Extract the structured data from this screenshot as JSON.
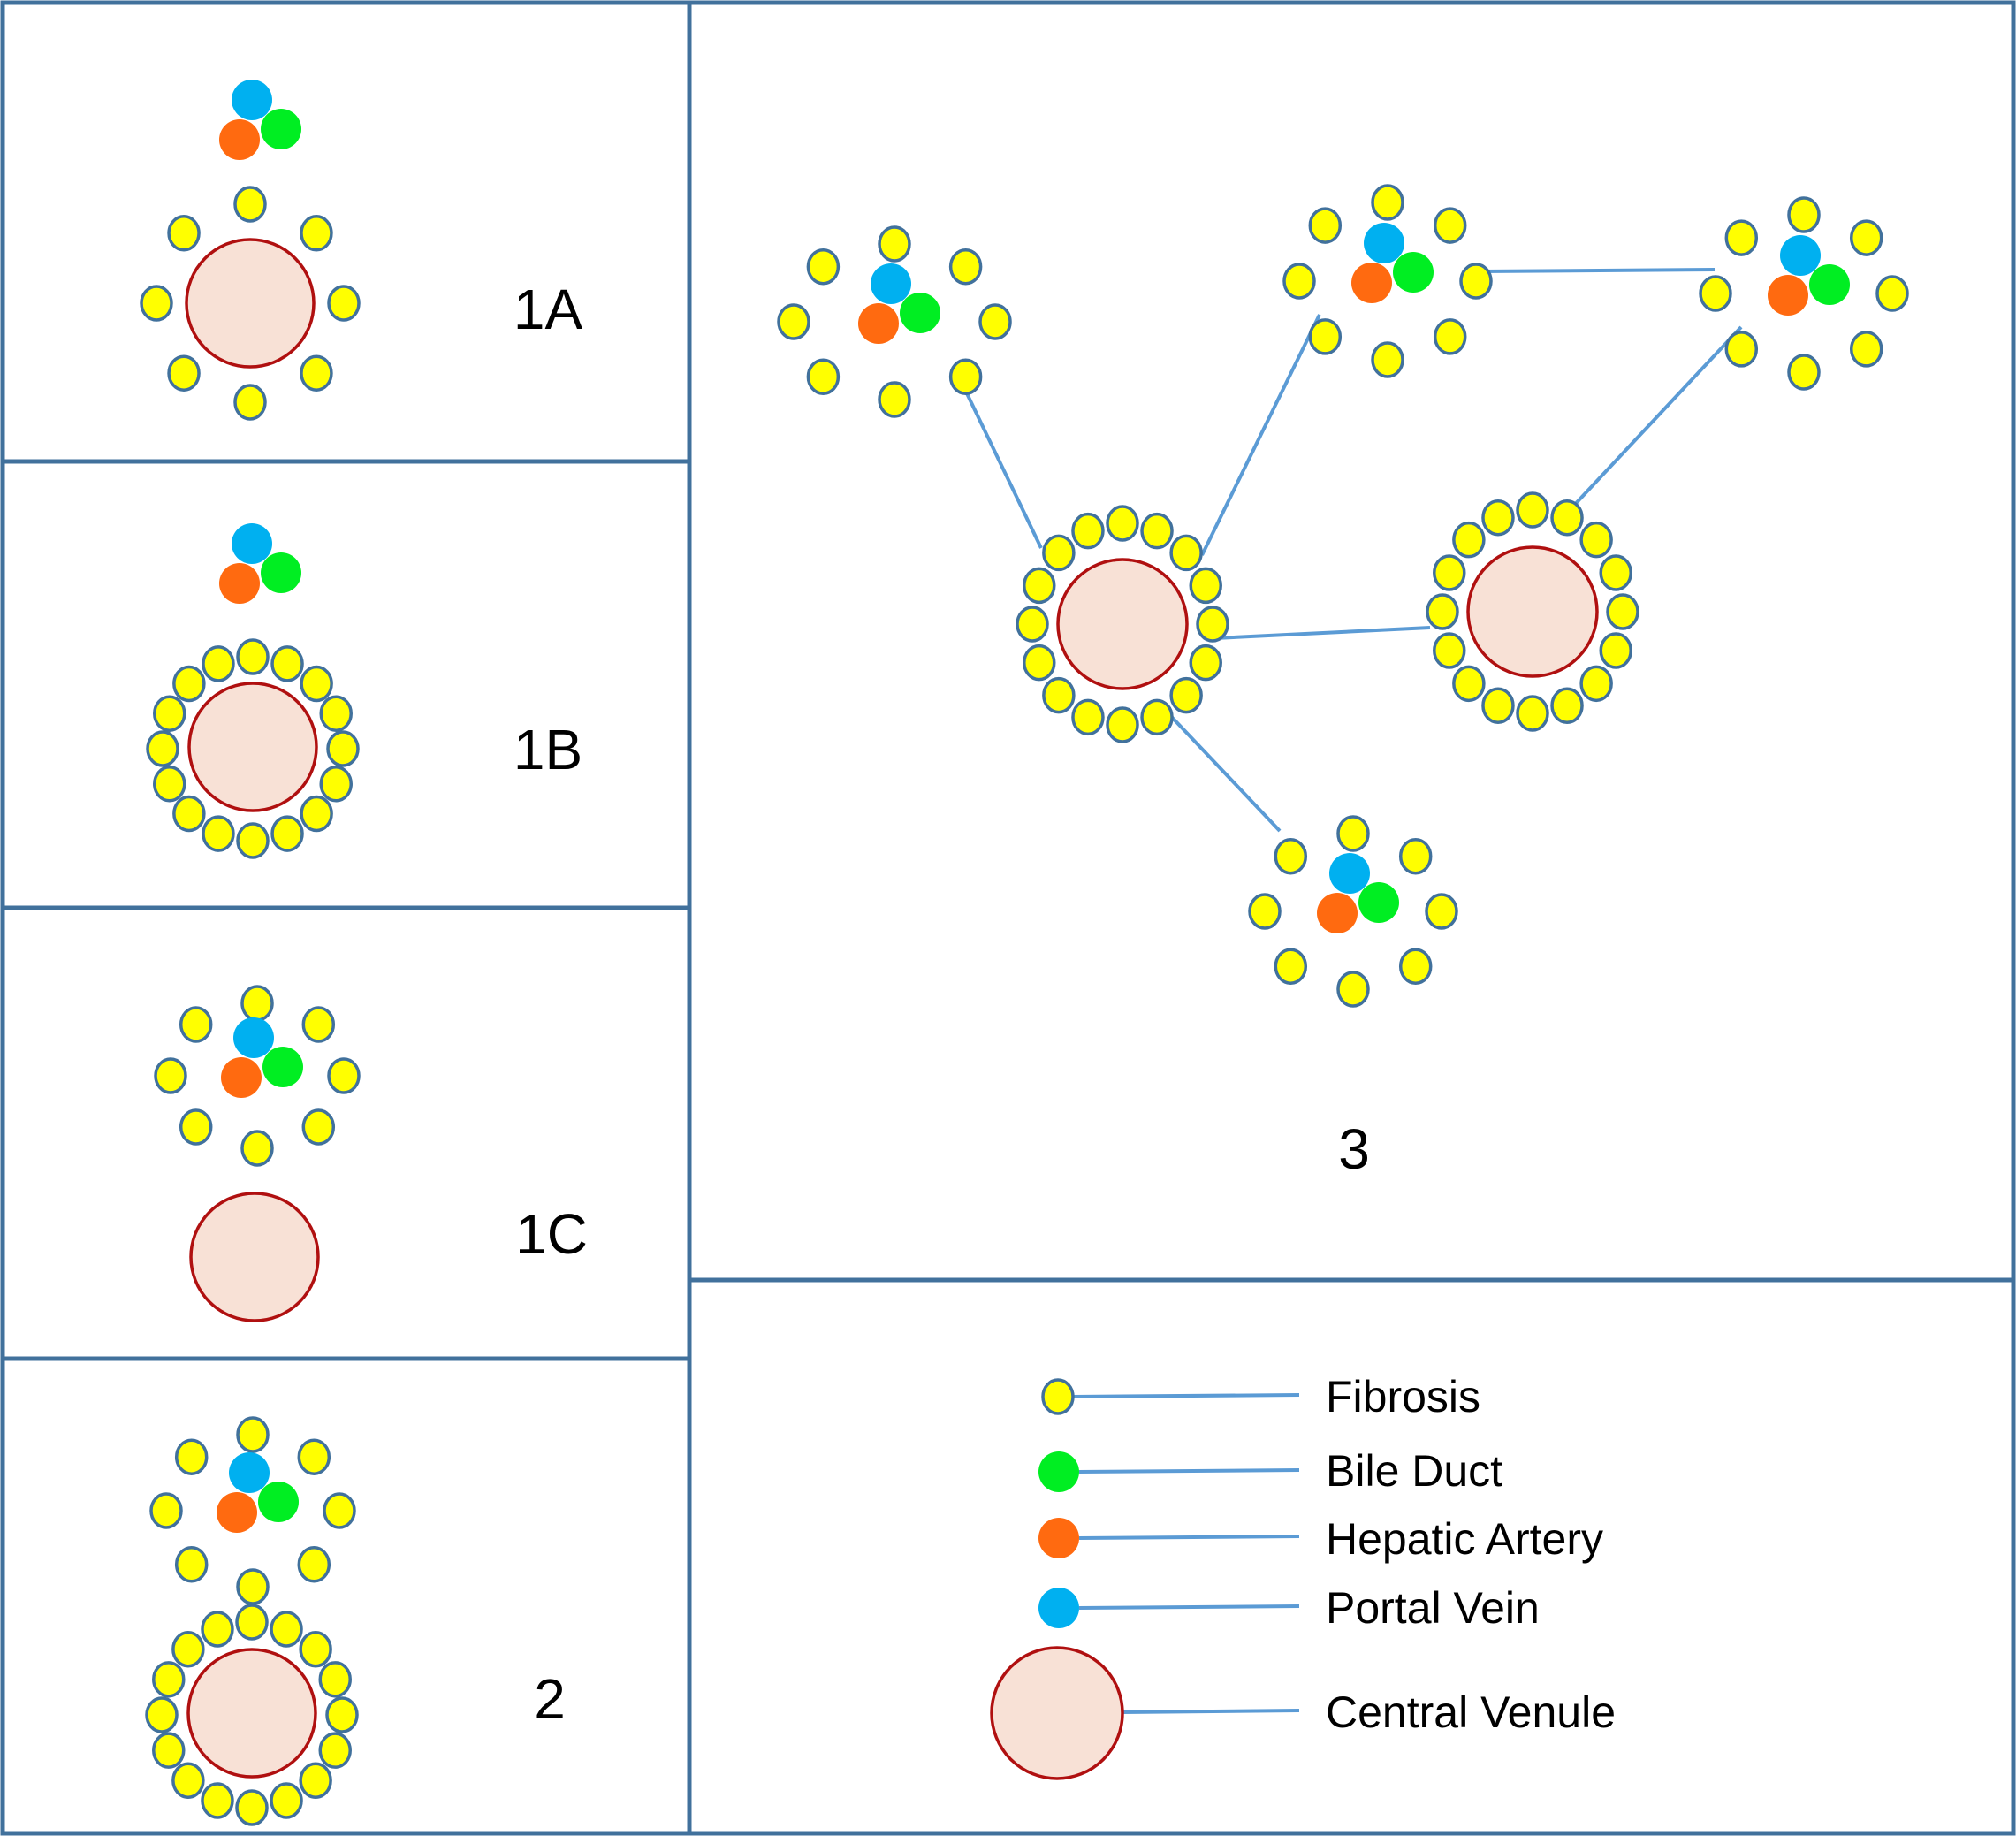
{
  "colors": {
    "fibrosis": "#ffff00",
    "fibrosis_outline": "#41719c",
    "bile_duct": "#00ee22",
    "hepatic_artery": "#ff6a10",
    "portal_vein": "#00b0f0",
    "central_venule_fill": "#f8e1d6",
    "central_venule_outline": "#b01010",
    "frame": "#41719c",
    "connector": "#5b9bd5"
  },
  "panels": {
    "p1a": {
      "label": "1A"
    },
    "p1b": {
      "label": "1B"
    },
    "p1c": {
      "label": "1C"
    },
    "p2": {
      "label": "2"
    },
    "p3": {
      "label": "3"
    }
  },
  "legend": {
    "items": [
      {
        "key": "fibrosis",
        "label": "Fibrosis",
        "icon": "fibrosis-icon"
      },
      {
        "key": "bile_duct",
        "label": "Bile Duct",
        "icon": "bile-duct-icon"
      },
      {
        "key": "hepatic_artery",
        "label": "Hepatic Artery",
        "icon": "hepatic-artery-icon"
      },
      {
        "key": "portal_vein",
        "label": "Portal Vein",
        "icon": "portal-vein-icon"
      },
      {
        "key": "central_venule",
        "label": "Central Venule",
        "icon": "central-venule-icon"
      }
    ]
  }
}
